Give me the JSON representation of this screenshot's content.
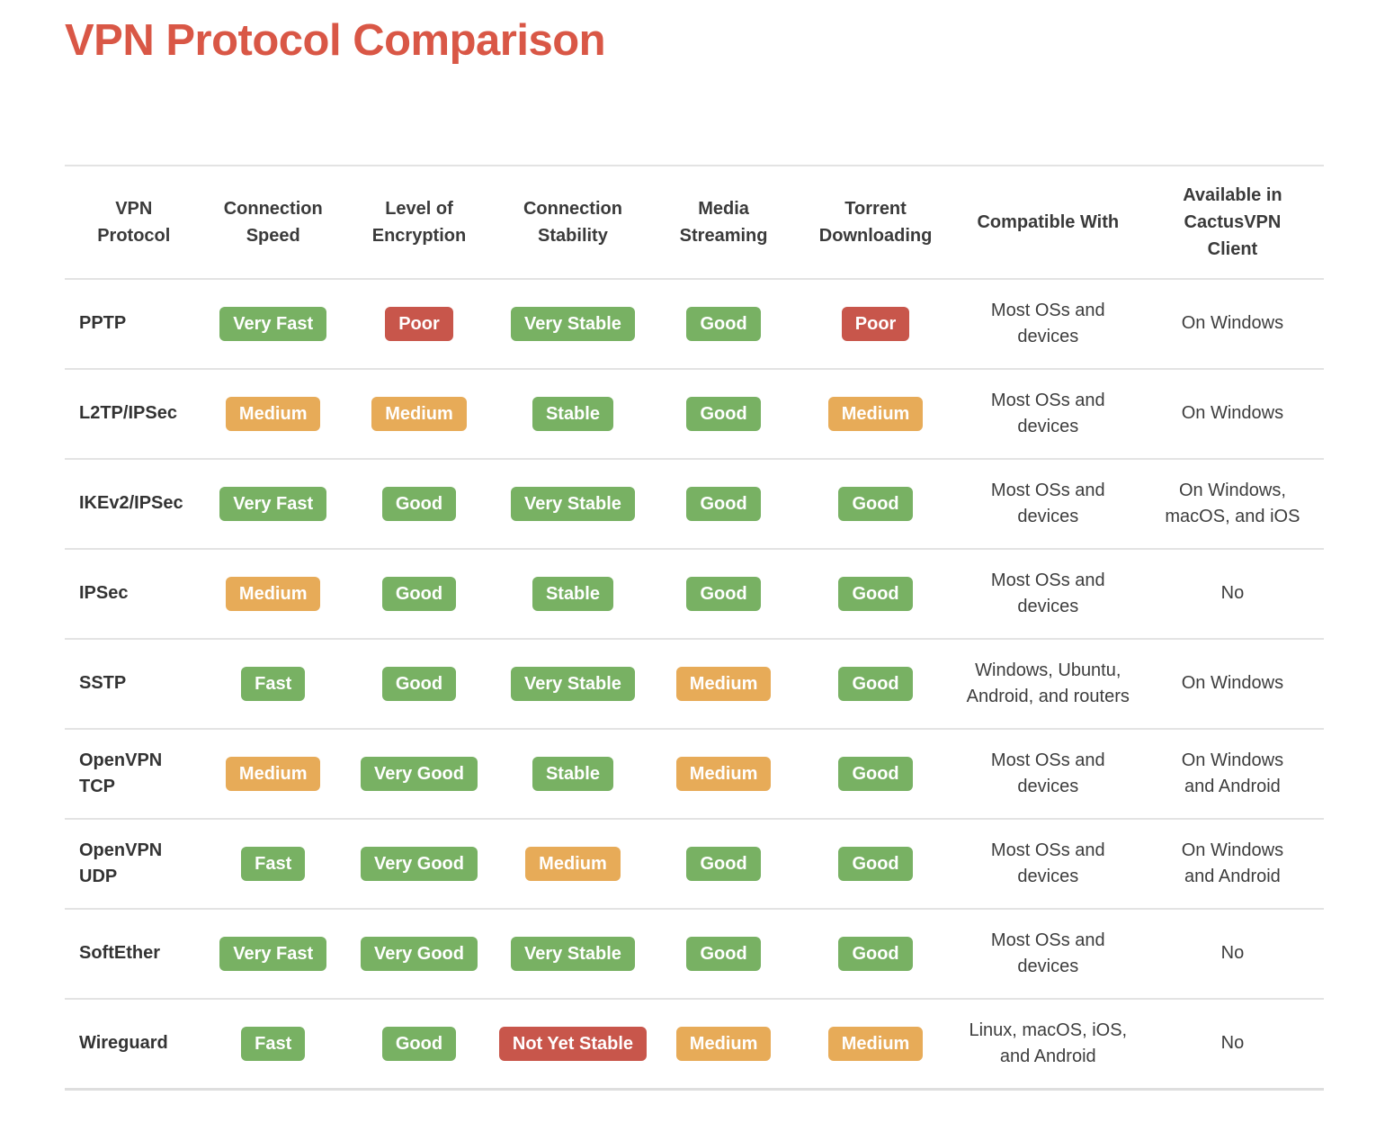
{
  "page": {
    "title": "VPN Protocol Comparison"
  },
  "colors": {
    "title": "#d95746",
    "good": "#78b163",
    "medium": "#e7ab58",
    "bad": "#c8564b"
  },
  "table": {
    "columns": [
      {
        "key": "protocol",
        "type": "protocol",
        "label": "VPN\nProtocol"
      },
      {
        "key": "speed",
        "type": "badge",
        "label": "Connection\nSpeed"
      },
      {
        "key": "encryption",
        "type": "badge",
        "label": "Level of\nEncryption"
      },
      {
        "key": "stability",
        "type": "badge",
        "label": "Connection\nStability"
      },
      {
        "key": "streaming",
        "type": "badge",
        "label": "Media\nStreaming"
      },
      {
        "key": "torrent",
        "type": "badge",
        "label": "Torrent\nDownloading"
      },
      {
        "key": "compatible",
        "type": "text",
        "label": "Compatible With"
      },
      {
        "key": "client",
        "type": "text",
        "label": "Available in\nCactusVPN\nClient"
      }
    ],
    "rows": [
      {
        "protocol": "PPTP",
        "speed": {
          "text": "Very Fast",
          "level": "good"
        },
        "encryption": {
          "text": "Poor",
          "level": "bad"
        },
        "stability": {
          "text": "Very Stable",
          "level": "good"
        },
        "streaming": {
          "text": "Good",
          "level": "good"
        },
        "torrent": {
          "text": "Poor",
          "level": "bad"
        },
        "compatible": "Most OSs and\ndevices",
        "client": "On Windows"
      },
      {
        "protocol": "L2TP/IPSec",
        "speed": {
          "text": "Medium",
          "level": "medium"
        },
        "encryption": {
          "text": "Medium",
          "level": "medium"
        },
        "stability": {
          "text": "Stable",
          "level": "good"
        },
        "streaming": {
          "text": "Good",
          "level": "good"
        },
        "torrent": {
          "text": "Medium",
          "level": "medium"
        },
        "compatible": "Most OSs and\ndevices",
        "client": "On Windows"
      },
      {
        "protocol": "IKEv2/IPSec",
        "speed": {
          "text": "Very Fast",
          "level": "good"
        },
        "encryption": {
          "text": "Good",
          "level": "good"
        },
        "stability": {
          "text": "Very Stable",
          "level": "good"
        },
        "streaming": {
          "text": "Good",
          "level": "good"
        },
        "torrent": {
          "text": "Good",
          "level": "good"
        },
        "compatible": "Most OSs and\ndevices",
        "client": "On Windows,\nmacOS, and iOS"
      },
      {
        "protocol": "IPSec",
        "speed": {
          "text": "Medium",
          "level": "medium"
        },
        "encryption": {
          "text": "Good",
          "level": "good"
        },
        "stability": {
          "text": "Stable",
          "level": "good"
        },
        "streaming": {
          "text": "Good",
          "level": "good"
        },
        "torrent": {
          "text": "Good",
          "level": "good"
        },
        "compatible": "Most OSs and\ndevices",
        "client": "No"
      },
      {
        "protocol": "SSTP",
        "speed": {
          "text": "Fast",
          "level": "good"
        },
        "encryption": {
          "text": "Good",
          "level": "good"
        },
        "stability": {
          "text": "Very Stable",
          "level": "good"
        },
        "streaming": {
          "text": "Medium",
          "level": "medium"
        },
        "torrent": {
          "text": "Good",
          "level": "good"
        },
        "compatible": "Windows, Ubuntu,\nAndroid, and routers",
        "client": "On Windows"
      },
      {
        "protocol": "OpenVPN\nTCP",
        "speed": {
          "text": "Medium",
          "level": "medium"
        },
        "encryption": {
          "text": "Very Good",
          "level": "good"
        },
        "stability": {
          "text": "Stable",
          "level": "good"
        },
        "streaming": {
          "text": "Medium",
          "level": "medium"
        },
        "torrent": {
          "text": "Good",
          "level": "good"
        },
        "compatible": "Most OSs and\ndevices",
        "client": "On Windows\nand Android"
      },
      {
        "protocol": "OpenVPN\nUDP",
        "speed": {
          "text": "Fast",
          "level": "good"
        },
        "encryption": {
          "text": "Very Good",
          "level": "good"
        },
        "stability": {
          "text": "Medium",
          "level": "medium"
        },
        "streaming": {
          "text": "Good",
          "level": "good"
        },
        "torrent": {
          "text": "Good",
          "level": "good"
        },
        "compatible": "Most OSs and\ndevices",
        "client": "On Windows\nand Android"
      },
      {
        "protocol": "SoftEther",
        "speed": {
          "text": "Very Fast",
          "level": "good"
        },
        "encryption": {
          "text": "Very Good",
          "level": "good"
        },
        "stability": {
          "text": "Very Stable",
          "level": "good"
        },
        "streaming": {
          "text": "Good",
          "level": "good"
        },
        "torrent": {
          "text": "Good",
          "level": "good"
        },
        "compatible": "Most OSs and\ndevices",
        "client": "No"
      },
      {
        "protocol": "Wireguard",
        "speed": {
          "text": "Fast",
          "level": "good"
        },
        "encryption": {
          "text": "Good",
          "level": "good"
        },
        "stability": {
          "text": "Not Yet Stable",
          "level": "bad"
        },
        "streaming": {
          "text": "Medium",
          "level": "medium"
        },
        "torrent": {
          "text": "Medium",
          "level": "medium"
        },
        "compatible": "Linux, macOS, iOS,\nand Android",
        "client": "No"
      }
    ]
  }
}
